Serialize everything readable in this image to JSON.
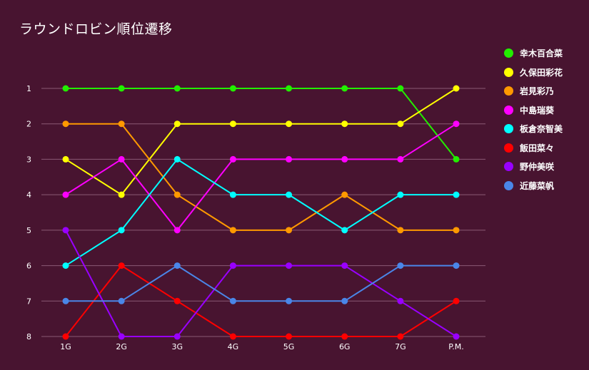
{
  "chart_data": {
    "type": "line",
    "title": "ラウンドロビン順位遷移",
    "xlabel": "",
    "ylabel": "",
    "categories": [
      "1G",
      "2G",
      "3G",
      "4G",
      "5G",
      "6G",
      "7G",
      "P.M."
    ],
    "y_ticks": [
      "1",
      "2",
      "3",
      "4",
      "5",
      "6",
      "7",
      "8"
    ],
    "ylim": [
      1,
      8
    ],
    "y_inverted": true,
    "grid": true,
    "legend_position": "right",
    "series": [
      {
        "name": "幸木百合菜",
        "color": "#22ee00",
        "values": [
          1,
          1,
          1,
          1,
          1,
          1,
          1,
          3
        ]
      },
      {
        "name": "久保田彩花",
        "color": "#ffff00",
        "values": [
          3,
          4,
          2,
          2,
          2,
          2,
          2,
          1
        ]
      },
      {
        "name": "岩見彩乃",
        "color": "#ff9900",
        "values": [
          2,
          2,
          4,
          5,
          5,
          4,
          5,
          5
        ]
      },
      {
        "name": "中島瑞葵",
        "color": "#ff00ff",
        "values": [
          4,
          3,
          5,
          3,
          3,
          3,
          3,
          2
        ]
      },
      {
        "name": "板倉奈智美",
        "color": "#00ffff",
        "values": [
          6,
          5,
          3,
          4,
          4,
          5,
          4,
          4
        ]
      },
      {
        "name": "飯田菜々",
        "color": "#ff0000",
        "values": [
          8,
          6,
          7,
          8,
          8,
          8,
          8,
          7
        ]
      },
      {
        "name": "野仲美咲",
        "color": "#9900ff",
        "values": [
          5,
          8,
          8,
          6,
          6,
          6,
          7,
          8
        ]
      },
      {
        "name": "近藤菜帆",
        "color": "#4a86e8",
        "values": [
          7,
          7,
          6,
          7,
          7,
          7,
          6,
          6
        ]
      }
    ]
  },
  "colors": {
    "background": "#481430",
    "gridline": "#8a5a74",
    "text": "#ffffff"
  }
}
